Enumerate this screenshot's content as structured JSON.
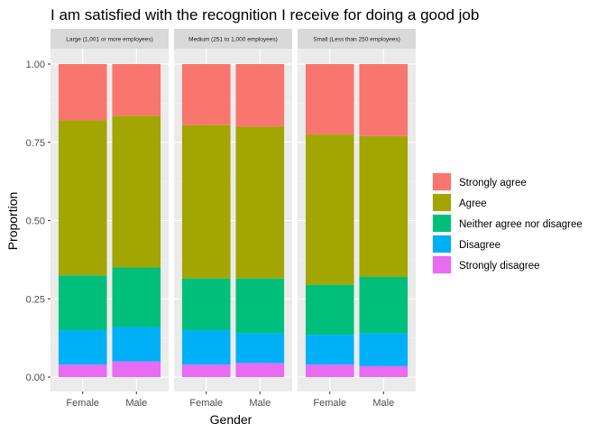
{
  "chart_data": {
    "type": "bar",
    "stacked": true,
    "title": "I am satisfied with the recognition I receive for doing a good job",
    "xlabel": "Gender",
    "ylabel": "Proportion",
    "ylim": [
      0,
      1
    ],
    "yticks": [
      "0.00",
      "0.25",
      "0.50",
      "0.75",
      "1.00"
    ],
    "ytick_values": [
      0,
      0.25,
      0.5,
      0.75,
      1.0
    ],
    "categories": [
      "Female",
      "Male"
    ],
    "legend_position": "right",
    "grid": true,
    "series_order_bottom_to_top": [
      "Strongly disagree",
      "Disagree",
      "Neither agree nor disagree",
      "Agree",
      "Strongly agree"
    ],
    "legend": [
      {
        "name": "Strongly agree",
        "color": "#F8766D"
      },
      {
        "name": "Agree",
        "color": "#A3A500"
      },
      {
        "name": "Neither agree nor disagree",
        "color": "#00BF7D"
      },
      {
        "name": "Disagree",
        "color": "#00B0F6"
      },
      {
        "name": "Strongly disagree",
        "color": "#E76BF3"
      }
    ],
    "facets": [
      {
        "label": "Large (1,001 or more employees)",
        "bars": [
          {
            "category": "Female",
            "values": {
              "Strongly disagree": 0.04,
              "Disagree": 0.11,
              "Neither agree nor disagree": 0.175,
              "Agree": 0.495,
              "Strongly agree": 0.18
            }
          },
          {
            "category": "Male",
            "values": {
              "Strongly disagree": 0.05,
              "Disagree": 0.11,
              "Neither agree nor disagree": 0.19,
              "Agree": 0.485,
              "Strongly agree": 0.165
            }
          }
        ]
      },
      {
        "label": "Medium (251 to 1,000 employees)",
        "bars": [
          {
            "category": "Female",
            "values": {
              "Strongly disagree": 0.04,
              "Disagree": 0.11,
              "Neither agree nor disagree": 0.165,
              "Agree": 0.49,
              "Strongly agree": 0.195
            }
          },
          {
            "category": "Male",
            "values": {
              "Strongly disagree": 0.045,
              "Disagree": 0.095,
              "Neither agree nor disagree": 0.175,
              "Agree": 0.485,
              "Strongly agree": 0.2
            }
          }
        ]
      },
      {
        "label": "Small (Less than 250 employees)",
        "bars": [
          {
            "category": "Female",
            "values": {
              "Strongly disagree": 0.04,
              "Disagree": 0.095,
              "Neither agree nor disagree": 0.16,
              "Agree": 0.48,
              "Strongly agree": 0.225
            }
          },
          {
            "category": "Male",
            "values": {
              "Strongly disagree": 0.035,
              "Disagree": 0.105,
              "Neither agree nor disagree": 0.18,
              "Agree": 0.45,
              "Strongly agree": 0.23
            }
          }
        ]
      }
    ]
  }
}
